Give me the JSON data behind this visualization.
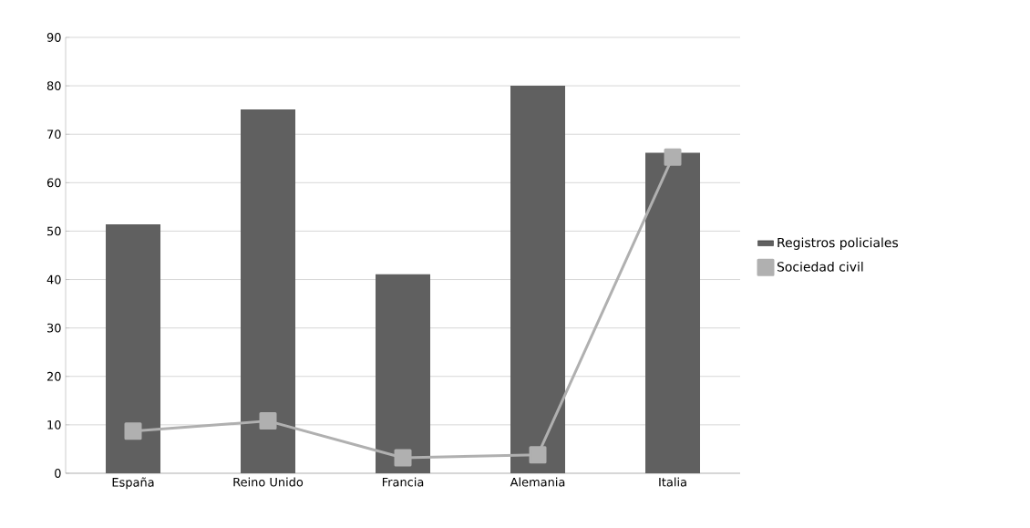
{
  "chart_data": {
    "type": "bar",
    "categories": [
      "España",
      "Reino Unido",
      "Francia",
      "Alemania",
      "Italia"
    ],
    "series": [
      {
        "name": "Registros policiales",
        "color": "#606060",
        "values": [
          51.4,
          75.1,
          41.1,
          80.0,
          66.2
        ]
      },
      {
        "name": "Sociedad civil",
        "type": "line",
        "color": "#b0b0b0",
        "marker": "square",
        "values": [
          8.7,
          10.8,
          3.2,
          3.8,
          65.3
        ]
      }
    ],
    "ylim": [
      0,
      90
    ],
    "yticks": [
      0,
      10,
      20,
      30,
      40,
      50,
      60,
      70,
      80,
      90
    ],
    "grid": "y",
    "legend": "right"
  }
}
